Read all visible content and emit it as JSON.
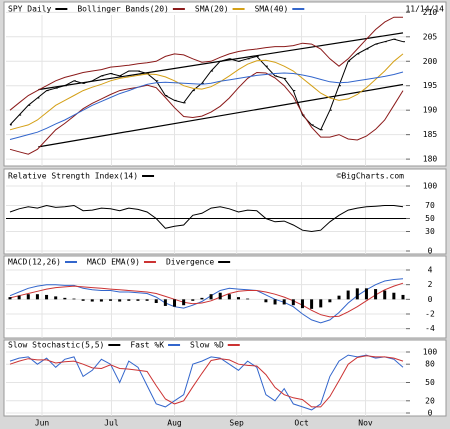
{
  "x_axis": {
    "xlim": [
      0,
      43
    ],
    "xticks": [
      {
        "value": 3.5,
        "label": "Jun"
      },
      {
        "value": 11.1,
        "label": "Jul"
      },
      {
        "value": 18.0,
        "label": "Aug"
      },
      {
        "value": 24.8,
        "label": "Sep"
      },
      {
        "value": 31.9,
        "label": "Oct"
      },
      {
        "value": 38.9,
        "label": "Nov"
      }
    ]
  },
  "chart_data": [
    {
      "type": "line",
      "date": "11/14/14",
      "ylim": [
        179,
        211.5
      ],
      "yticks": [
        210,
        205,
        200,
        195,
        190,
        185,
        180
      ],
      "grid": true,
      "series": [
        {
          "name": "SPY Daily",
          "color": "#000000",
          "values": [
            187,
            189,
            191,
            192.5,
            194,
            194.5,
            195,
            196,
            195.5,
            196,
            197,
            197.5,
            197,
            198,
            198,
            197.5,
            196,
            193,
            192,
            191.5,
            194,
            195.5,
            198,
            200,
            200.5,
            200,
            200.5,
            201,
            199,
            197,
            196.5,
            194,
            189,
            187,
            186,
            190,
            195,
            200,
            201.5,
            202.5,
            203.5,
            204,
            204.5,
            204
          ]
        },
        {
          "name": "Bollinger Bands(20)",
          "color": "#8b1a1a",
          "values": [
            190,
            191.5,
            193,
            194,
            195,
            196,
            196.7,
            197.2,
            197.7,
            198,
            198.3,
            198.8,
            199,
            199.2,
            199.5,
            199.7,
            200,
            201,
            201.5,
            201.3,
            200.5,
            199.8,
            200,
            200.8,
            201.5,
            202,
            202.3,
            202.5,
            202.8,
            203,
            203,
            203.2,
            203.7,
            203.5,
            202.5,
            200.5,
            199,
            200.5,
            202.5,
            204.5,
            206.5,
            208,
            209,
            209
          ],
          "lower": [
            182,
            181.5,
            181,
            182,
            184,
            186,
            187.3,
            188.8,
            190.3,
            191.4,
            192.3,
            193.2,
            194,
            194.4,
            194.7,
            195.1,
            194.6,
            192.6,
            190.5,
            188.7,
            188.5,
            188.8,
            189.6,
            190.8,
            192.5,
            194.6,
            196.5,
            197.7,
            197.6,
            196.6,
            195,
            192.8,
            189.3,
            186.5,
            184.5,
            184.5,
            185,
            184.1,
            183.9,
            184.7,
            186.1,
            188,
            191,
            194
          ]
        },
        {
          "name": "SMA(20)",
          "color": "#d4a017",
          "values": [
            186,
            186.5,
            187,
            188,
            189.5,
            191,
            192,
            193,
            194,
            194.7,
            195.3,
            196,
            196.5,
            196.8,
            197.1,
            197.4,
            197.3,
            196.8,
            196,
            195,
            194.5,
            194.3,
            194.8,
            195.8,
            197,
            198.3,
            199.4,
            200.1,
            200.2,
            199.8,
            199,
            198,
            196.5,
            195,
            193.5,
            192.5,
            192,
            192.3,
            193.2,
            194.6,
            196.3,
            198,
            200,
            201.5
          ]
        },
        {
          "name": "SMA(40)",
          "color": "#3366cc",
          "values": [
            184,
            184.5,
            185,
            185.5,
            186.3,
            187.2,
            188,
            189,
            190,
            191,
            191.8,
            192.6,
            193.4,
            194,
            194.7,
            195.3,
            195.6,
            195.7,
            195.6,
            195.5,
            195.4,
            195.3,
            195.5,
            195.9,
            196.2,
            196.5,
            196.8,
            197.1,
            197.3,
            197.5,
            197.6,
            197.5,
            197.2,
            196.8,
            196.3,
            195.8,
            195.6,
            195.7,
            196,
            196.3,
            196.6,
            196.9,
            197.3,
            197.8
          ]
        }
      ],
      "trendlines": [
        {
          "x": [
            3.1,
            43
          ],
          "y": [
            194.2,
            205.8
          ]
        },
        {
          "x": [
            3.1,
            43
          ],
          "y": [
            182.5,
            195.25
          ]
        }
      ]
    },
    {
      "type": "line",
      "credit": "©BigCharts.com",
      "ylim": [
        0,
        100
      ],
      "yticks": [
        100,
        70,
        50,
        30,
        0
      ],
      "grid": true,
      "series": [
        {
          "name": "Relative Strength Index(14)",
          "color": "#000000",
          "values": [
            60,
            65,
            68,
            66,
            70,
            67,
            68,
            70,
            62,
            63,
            66,
            65,
            62,
            66,
            64,
            60,
            50,
            35,
            38,
            40,
            55,
            58,
            66,
            68,
            65,
            60,
            63,
            62,
            50,
            45,
            46,
            40,
            32,
            30,
            32,
            45,
            55,
            63,
            66,
            68,
            69,
            70,
            70,
            68
          ]
        }
      ]
    },
    {
      "type": "line",
      "ylim": [
        -5,
        5.5
      ],
      "yticks": [
        4,
        2,
        0,
        -2,
        -4
      ],
      "grid": true,
      "series": [
        {
          "name": "MACD(12,26)",
          "color": "#3366cc",
          "values": [
            0.5,
            1,
            1.5,
            1.8,
            2,
            2,
            1.9,
            1.9,
            1.5,
            1.3,
            1.2,
            1.2,
            1,
            1,
            0.9,
            0.8,
            0.3,
            -0.5,
            -1,
            -1.2,
            -0.8,
            -0.3,
            0.5,
            1.2,
            1.5,
            1.4,
            1.3,
            1.2,
            0.6,
            0,
            -0.4,
            -1,
            -2,
            -2.8,
            -3.2,
            -2.8,
            -1.8,
            -0.5,
            0.5,
            1.3,
            2,
            2.5,
            2.7,
            2.8
          ]
        },
        {
          "name": "MACD EMA(9)",
          "color": "#cc3333",
          "values": [
            0.2,
            0.5,
            0.8,
            1.1,
            1.4,
            1.6,
            1.7,
            1.8,
            1.7,
            1.6,
            1.5,
            1.4,
            1.3,
            1.2,
            1.1,
            1,
            0.8,
            0.4,
            0,
            -0.4,
            -0.6,
            -0.5,
            -0.2,
            0.3,
            0.8,
            1.1,
            1.2,
            1.2,
            1,
            0.7,
            0.3,
            -0.2,
            -0.8,
            -1.5,
            -2.1,
            -2.4,
            -2.3,
            -1.7,
            -1,
            -0.2,
            0.6,
            1.3,
            1.8,
            2.2
          ]
        },
        {
          "name": "Divergence",
          "color": "#000000",
          "style": "bar",
          "values": [
            0.3,
            0.5,
            0.7,
            0.7,
            0.6,
            0.4,
            0.2,
            0.1,
            -0.2,
            -0.3,
            -0.3,
            -0.2,
            -0.3,
            -0.2,
            -0.2,
            -0.2,
            -0.5,
            -0.9,
            -1,
            -0.8,
            -0.2,
            0.2,
            0.7,
            0.9,
            0.7,
            0.3,
            0.1,
            0,
            -0.4,
            -0.7,
            -0.7,
            -0.8,
            -1.2,
            -1.3,
            -1.1,
            -0.4,
            0.5,
            1.2,
            1.5,
            1.5,
            1.4,
            1.2,
            0.9,
            0.6
          ]
        }
      ]
    },
    {
      "type": "line",
      "ylim": [
        0,
        100
      ],
      "yticks": [
        100,
        80,
        50,
        20,
        0
      ],
      "grid": true,
      "series": [
        {
          "name": "Slow Stochastic(5,5)",
          "color": "#000000",
          "values": null
        },
        {
          "name": "Fast %K",
          "color": "#3366cc",
          "values": [
            85,
            90,
            92,
            80,
            90,
            75,
            88,
            92,
            60,
            70,
            88,
            80,
            50,
            85,
            75,
            45,
            15,
            10,
            20,
            30,
            80,
            85,
            92,
            90,
            80,
            70,
            85,
            75,
            30,
            20,
            40,
            15,
            10,
            5,
            15,
            60,
            85,
            95,
            92,
            95,
            90,
            92,
            88,
            75
          ]
        },
        {
          "name": "Slow %D",
          "color": "#cc3333",
          "values": [
            80,
            85,
            89,
            87,
            87,
            82,
            84,
            85,
            80,
            74,
            73,
            79,
            73,
            72,
            70,
            68,
            45,
            23,
            15,
            20,
            43,
            65,
            86,
            89,
            87,
            80,
            78,
            77,
            63,
            42,
            30,
            25,
            22,
            10,
            10,
            27,
            53,
            80,
            91,
            94,
            92,
            92,
            90,
            85
          ]
        }
      ]
    }
  ]
}
